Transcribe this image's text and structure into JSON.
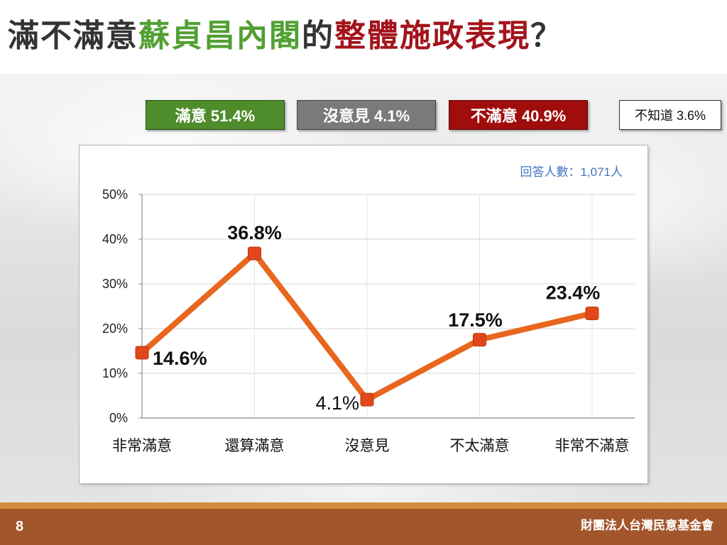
{
  "slide": {
    "title_segments": [
      {
        "text": "滿不滿意",
        "color": "#333333"
      },
      {
        "text": "蘇貞昌內閣",
        "color": "#52a033"
      },
      {
        "text": "的",
        "color": "#333333"
      },
      {
        "text": "整體施政表現",
        "color": "#a3141c"
      },
      {
        "text": "？",
        "color": "#333333"
      }
    ],
    "page_number": "8",
    "organization": "財團法人台灣民意基金會"
  },
  "summary": [
    {
      "label": "滿意 51.4%",
      "color": "#4e8c2c",
      "text_color": "#ffffff"
    },
    {
      "label": "沒意見 4.1%",
      "color": "#7a7a7a",
      "text_color": "#ffffff"
    },
    {
      "label": "不滿意 40.9%",
      "color": "#a10d0d",
      "text_color": "#ffffff"
    },
    {
      "label": "不知道 3.6%",
      "color": "#ffffff",
      "text_color": "#111111"
    }
  ],
  "chart_data": {
    "type": "line",
    "categories": [
      "非常滿意",
      "還算滿意",
      "沒意見",
      "不太滿意",
      "非常不滿意"
    ],
    "series": [
      {
        "values": [
          14.6,
          36.8,
          4.1,
          17.5,
          23.4
        ],
        "color": "#e8661e",
        "marker_color": "#e2471b"
      }
    ],
    "data_labels": [
      "14.6%",
      "36.8%",
      "4.1%",
      "17.5%",
      "23.4%"
    ],
    "y_ticks": [
      0,
      10,
      20,
      30,
      40,
      50
    ],
    "y_tick_labels": [
      "0%",
      "10%",
      "20%",
      "30%",
      "40%",
      "50%"
    ],
    "ylim": [
      0,
      50
    ],
    "annotation": "回答人數：1,071人",
    "annotation_color": "#4472c4",
    "grid": true
  }
}
